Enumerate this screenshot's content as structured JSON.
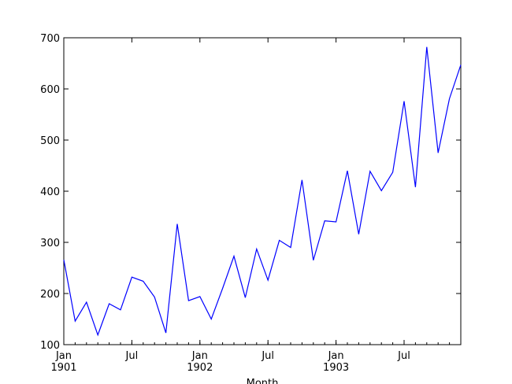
{
  "chart_data": {
    "type": "line",
    "title": "",
    "xlabel": "Month",
    "ylabel": "",
    "ylim": [
      100,
      700
    ],
    "yticks": [
      100,
      200,
      300,
      400,
      500,
      600,
      700
    ],
    "xlim": [
      "1901-01",
      "1903-12"
    ],
    "x_ticks": [
      {
        "date": "1901-01",
        "line1": "Jan",
        "line2": "1901"
      },
      {
        "date": "1901-07",
        "line1": "Jul",
        "line2": ""
      },
      {
        "date": "1902-01",
        "line1": "Jan",
        "line2": "1902"
      },
      {
        "date": "1902-07",
        "line1": "Jul",
        "line2": ""
      },
      {
        "date": "1903-01",
        "line1": "Jan",
        "line2": "1903"
      },
      {
        "date": "1903-07",
        "line1": "Jul",
        "line2": ""
      }
    ],
    "grid": false,
    "legend": "none",
    "series": [
      {
        "color": "#0000ff",
        "x": [
          "1901-01",
          "1901-02",
          "1901-03",
          "1901-04",
          "1901-05",
          "1901-06",
          "1901-07",
          "1901-08",
          "1901-09",
          "1901-10",
          "1901-11",
          "1901-12",
          "1902-01",
          "1902-02",
          "1902-03",
          "1902-04",
          "1902-05",
          "1902-06",
          "1902-07",
          "1902-08",
          "1902-09",
          "1902-10",
          "1902-11",
          "1902-12",
          "1903-01",
          "1903-02",
          "1903-03",
          "1903-04",
          "1903-05",
          "1903-06",
          "1903-07",
          "1903-08",
          "1903-09",
          "1903-10",
          "1903-11",
          "1903-12"
        ],
        "values": [
          266,
          146,
          183,
          119,
          180,
          168,
          232,
          224,
          193,
          123,
          336,
          186,
          194,
          150,
          210,
          273,
          192,
          287,
          226,
          304,
          290,
          422,
          265,
          342,
          340,
          440,
          316,
          439,
          401,
          437,
          576,
          408,
          682,
          475,
          581,
          647
        ]
      }
    ]
  }
}
